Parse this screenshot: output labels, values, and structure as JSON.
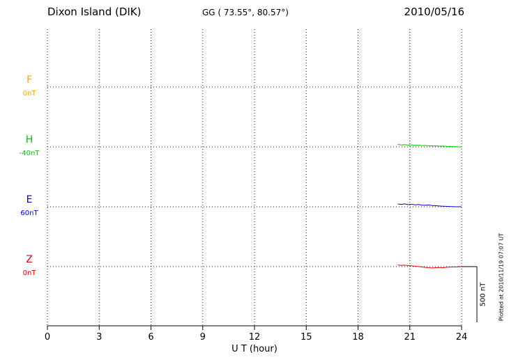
{
  "header": {
    "station": "Dixon Island (DIK)",
    "coords": "GG ( 73.55°,  80.57°)",
    "date": "2010/05/16"
  },
  "channels": [
    {
      "label": "F",
      "baseline_label": "0nT",
      "color": "#FFA500"
    },
    {
      "label": "H",
      "baseline_label": "-40nT",
      "color": "#00C800"
    },
    {
      "label": "E",
      "baseline_label": "60nT",
      "color": "#0000C8"
    },
    {
      "label": "Z",
      "baseline_label": "0nT",
      "color": "#E80000"
    }
  ],
  "xaxis": {
    "label": "U T (hour)",
    "ticks": [
      0,
      3,
      6,
      9,
      12,
      15,
      18,
      21,
      24
    ]
  },
  "scale_bar": {
    "label": "500 nT"
  },
  "footer_note": "Plotted at 2010/11/19 07:07 UT",
  "chart_data": {
    "type": "line",
    "title": "Dixon Island (DIK) magnetogram 2010/05/16",
    "xlabel": "U T (hour)",
    "ylabel": "nT",
    "xlim": [
      0,
      24
    ],
    "grid": "dotted",
    "legend": "none",
    "scale_bar_nT": 500,
    "data_start_hour": 20.3,
    "x": [
      20.3,
      20.5,
      20.7,
      20.9,
      21.1,
      21.3,
      21.5,
      21.7,
      21.9,
      22.1,
      22.3,
      22.5,
      22.7,
      22.9,
      23.1,
      23.3,
      23.5,
      23.7,
      23.9,
      24.0
    ],
    "series": [
      {
        "name": "F",
        "baseline_nT": 0,
        "color": "#FFA500",
        "values": []
      },
      {
        "name": "H",
        "baseline_nT": -40,
        "color": "#00C800",
        "values": [
          -18,
          -23,
          -20,
          -24,
          -22,
          -26,
          -24,
          -28,
          -27,
          -30,
          -32,
          -31,
          -34,
          -33,
          -36,
          -36,
          -38,
          -39,
          -40,
          -40
        ]
      },
      {
        "name": "E",
        "baseline_nT": 60,
        "color": "#0000C8",
        "values": [
          85,
          81,
          86,
          79,
          83,
          77,
          80,
          75,
          73,
          76,
          71,
          69,
          67,
          65,
          64,
          62,
          61,
          60,
          60,
          60
        ]
      },
      {
        "name": "Z",
        "baseline_nT": 0,
        "color": "#E80000",
        "values": [
          15,
          11,
          13,
          9,
          7,
          4,
          1,
          -3,
          -7,
          -10,
          -12,
          -9,
          -8,
          -10,
          -6,
          -4,
          -3,
          -2,
          -1,
          0
        ]
      }
    ]
  }
}
